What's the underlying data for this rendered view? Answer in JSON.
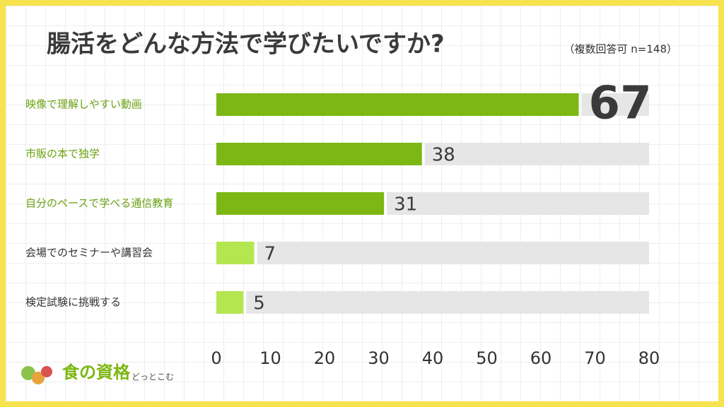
{
  "chart_data": {
    "type": "hbar",
    "title": "腸活をどんな方法で学びたいですか?",
    "subtitle": "（複数回答可 n=148）",
    "categories": [
      "映像で理解しやすい動画",
      "市販の本で独学",
      "自分のペースで学べる通信教育",
      "会場でのセミナーや講習会",
      "検定試験に挑戦する"
    ],
    "values": [
      67,
      38,
      31,
      7,
      5
    ],
    "colors": [
      "#7db713",
      "#7db713",
      "#7db713",
      "#b4e64f",
      "#b4e64f"
    ],
    "label_colors": [
      "#6aa212",
      "#6aa212",
      "#6aa212",
      "#333333",
      "#333333"
    ],
    "track_color": "#e6e6e6",
    "xlim": [
      0,
      80
    ],
    "xticks": [
      0,
      10,
      20,
      30,
      40,
      50,
      60,
      70,
      80
    ]
  },
  "logo": {
    "main": "食の資格",
    "sub": "どっとこむ"
  }
}
